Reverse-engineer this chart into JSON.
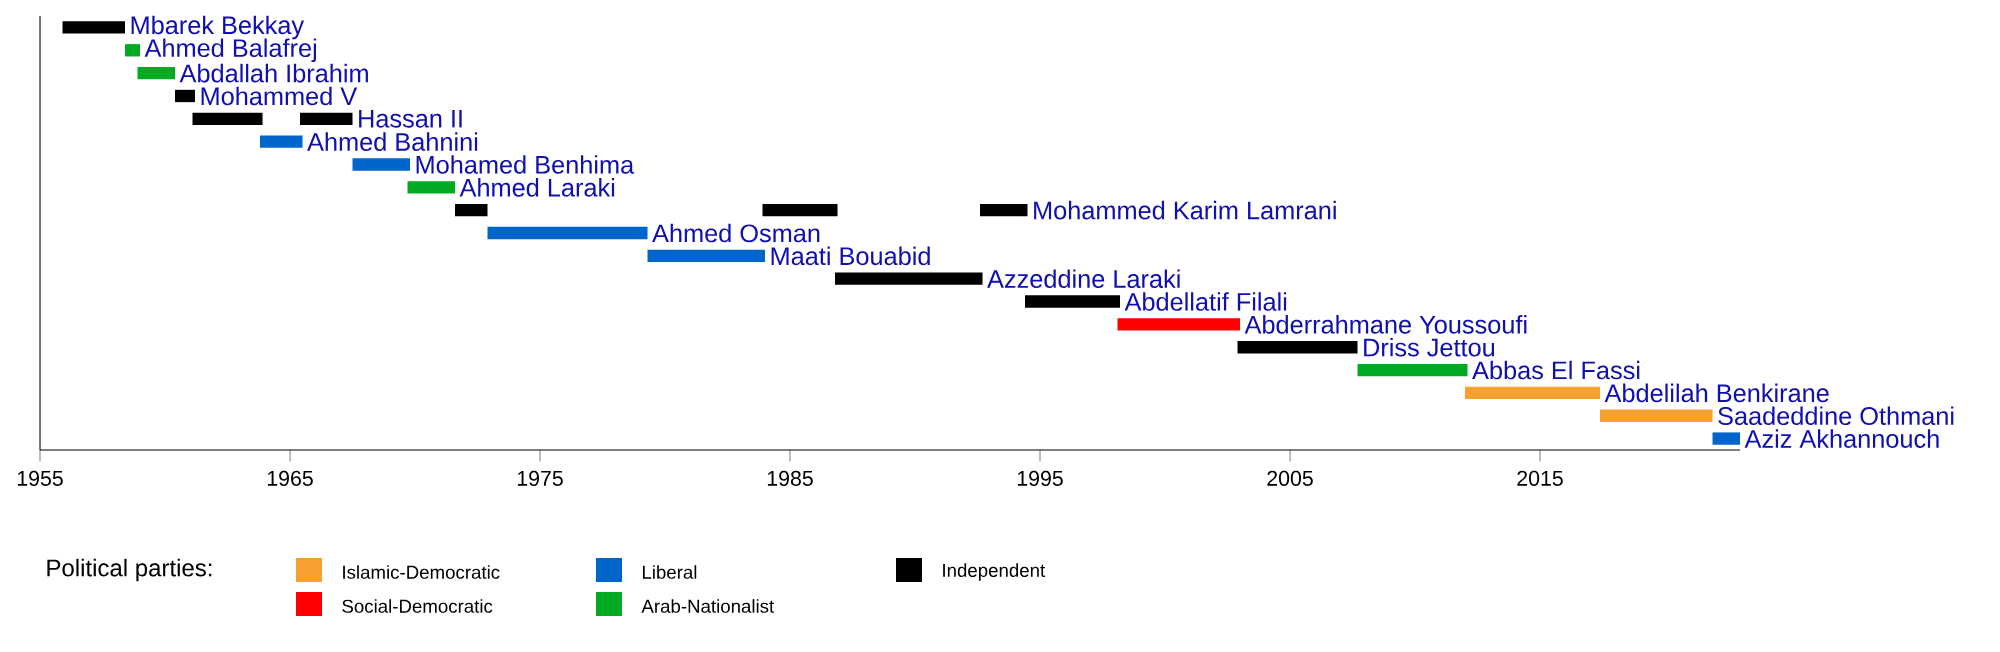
{
  "chart_data": {
    "type": "bar",
    "orientation": "horizontal",
    "legend": "bottom",
    "legend_title": "Political parties:",
    "categories": [
      "Mbarek Bekkay",
      "Ahmed Balafrej",
      "Abdallah Ibrahim",
      "Mohammed V",
      "Hassan II",
      "Ahmed Bahnini",
      "Mohamed Benhima",
      "Ahmed Laraki",
      "Mohammed Karim Lamrani",
      "Ahmed Osman",
      "Maati Bouabid",
      "Azzeddine Laraki",
      "Abdellatif Filali",
      "Abderrahmane Youssoufi",
      "Driss Jettou",
      "Abbas El Fassi",
      "Abdelilah Benkirane",
      "Saadeddine Othmani",
      "Aziz Akhannouch"
    ],
    "series": [
      {
        "name": "Islamic-Democratic",
        "color": "#f7a030",
        "base": [
          null,
          null,
          null,
          null,
          null,
          null,
          null,
          null,
          null,
          null,
          null,
          null,
          null,
          null,
          null,
          null,
          2012.0,
          2017.4,
          null
        ],
        "values": [
          null,
          null,
          null,
          null,
          null,
          null,
          null,
          null,
          null,
          null,
          null,
          null,
          null,
          null,
          null,
          null,
          5.4,
          4.5,
          null
        ]
      },
      {
        "name": "Social-Democratic",
        "color": "#ff0000",
        "base": [
          null,
          null,
          null,
          null,
          null,
          null,
          null,
          null,
          null,
          null,
          null,
          null,
          null,
          1998.1,
          null,
          null,
          null,
          null,
          null
        ],
        "values": [
          null,
          null,
          null,
          null,
          null,
          null,
          null,
          null,
          null,
          null,
          null,
          null,
          null,
          4.9,
          null,
          null,
          null,
          null,
          null
        ]
      },
      {
        "name": "Liberal",
        "color": "#0066cc",
        "base": [
          null,
          null,
          null,
          null,
          null,
          1963.8,
          1967.5,
          null,
          null,
          1972.9,
          1979.3,
          null,
          null,
          null,
          null,
          null,
          null,
          null,
          2021.9
        ],
        "values": [
          null,
          null,
          null,
          null,
          null,
          1.7,
          2.3,
          null,
          null,
          6.4,
          4.7,
          null,
          null,
          null,
          null,
          null,
          null,
          null,
          1.1
        ]
      },
      {
        "name": "Arab-Nationalist",
        "color": "#00aa22",
        "base": [
          null,
          1958.4,
          1958.9,
          null,
          null,
          null,
          null,
          1969.7,
          null,
          null,
          null,
          null,
          null,
          null,
          null,
          2007.7,
          null,
          null,
          null
        ],
        "values": [
          null,
          0.6,
          1.5,
          null,
          null,
          null,
          null,
          1.9,
          null,
          null,
          null,
          null,
          null,
          null,
          null,
          4.4,
          null,
          null,
          null
        ]
      },
      {
        "name": "Independent",
        "color": "#000000",
        "base": [
          1955.9,
          null,
          null,
          1960.4,
          1961.1,
          null,
          null,
          null,
          1971.6,
          null,
          null,
          1986.8,
          1994.4,
          null,
          2002.9,
          null,
          null,
          null,
          null
        ],
        "values": [
          2.5,
          null,
          null,
          0.8,
          2.8,
          null,
          null,
          null,
          1.3,
          null,
          null,
          5.9,
          3.8,
          null,
          4.8,
          null,
          null,
          null,
          null
        ]
      },
      {
        "color": "#000000",
        "base": [
          null,
          null,
          null,
          null,
          1965.4,
          null,
          null,
          null,
          1983.9,
          null,
          null,
          null,
          null,
          null,
          null,
          null,
          null,
          null,
          null
        ],
        "values": [
          null,
          null,
          null,
          null,
          2.1,
          null,
          null,
          null,
          3.0,
          null,
          null,
          null,
          null,
          null,
          null,
          null,
          null,
          null,
          null
        ]
      },
      {
        "color": "#000000",
        "base": [
          null,
          null,
          null,
          null,
          null,
          null,
          null,
          null,
          1992.6,
          null,
          null,
          null,
          null,
          null,
          null,
          null,
          null,
          null,
          null
        ],
        "values": [
          null,
          null,
          null,
          null,
          null,
          null,
          null,
          null,
          1.9,
          null,
          null,
          null,
          null,
          null,
          null,
          null,
          null,
          null,
          null
        ]
      }
    ],
    "xlim": [
      1955,
      2023
    ],
    "xticks": [
      1955,
      1965,
      1975,
      1985,
      1995,
      2005,
      2015
    ]
  }
}
